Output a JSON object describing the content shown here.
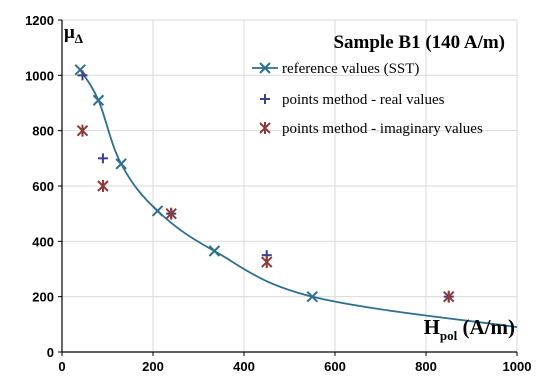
{
  "chart_data": {
    "type": "scatter",
    "title": "Sample B1 (140 A/m)",
    "ylabel": "μ",
    "ylabel_sub": "Δ",
    "xlabel_main": "H",
    "xlabel_sub": "pol",
    "xlabel_unit": " (A/m)",
    "xlim": [
      0,
      1000
    ],
    "ylim": [
      0,
      1200
    ],
    "x_ticks": [
      "0",
      "200",
      "400",
      "600",
      "800",
      "1000"
    ],
    "y_ticks": [
      "0",
      "200",
      "400",
      "600",
      "800",
      "1000",
      "1200"
    ],
    "grid": true,
    "legend_position": "right",
    "series": [
      {
        "name": "reference values (SST)",
        "marker": "x",
        "line": true,
        "color": "#2e6e8e",
        "points": [
          {
            "x": 40,
            "y": 1020
          },
          {
            "x": 80,
            "y": 910
          },
          {
            "x": 130,
            "y": 680
          },
          {
            "x": 210,
            "y": 510
          },
          {
            "x": 335,
            "y": 365
          },
          {
            "x": 550,
            "y": 200
          }
        ],
        "curve_tail": {
          "x": 1000,
          "y": 90
        }
      },
      {
        "name": "points method - real values",
        "marker": "plus",
        "line": false,
        "color": "#3b3f8f",
        "points": [
          {
            "x": 45,
            "y": 1000
          },
          {
            "x": 90,
            "y": 700
          },
          {
            "x": 240,
            "y": 500
          },
          {
            "x": 450,
            "y": 350
          },
          {
            "x": 850,
            "y": 200
          }
        ]
      },
      {
        "name": "points method - imaginary values",
        "marker": "star",
        "line": false,
        "color": "#8b3a3a",
        "points": [
          {
            "x": 45,
            "y": 800
          },
          {
            "x": 90,
            "y": 600
          },
          {
            "x": 240,
            "y": 500
          },
          {
            "x": 450,
            "y": 325
          },
          {
            "x": 850,
            "y": 200
          }
        ]
      }
    ]
  }
}
